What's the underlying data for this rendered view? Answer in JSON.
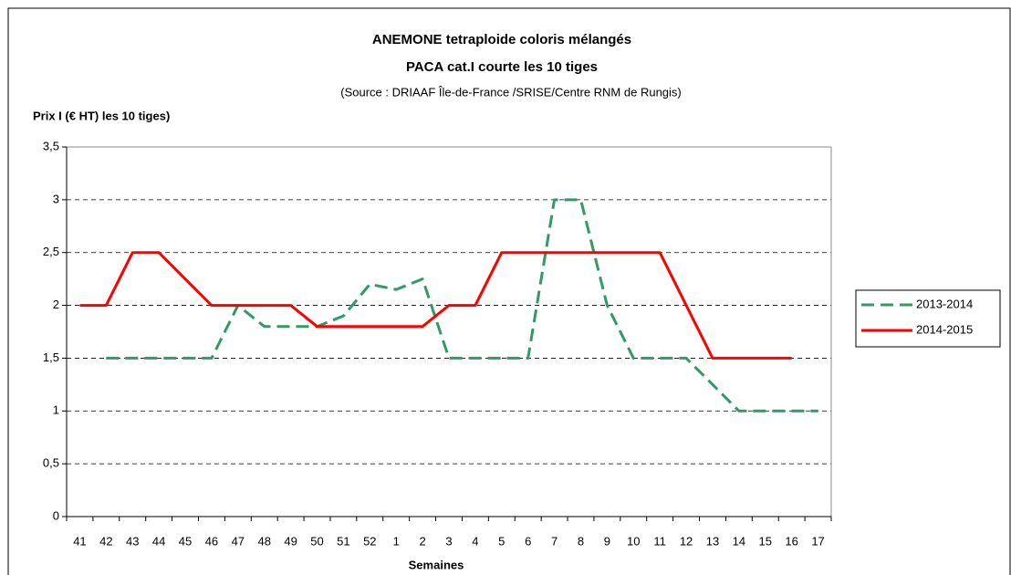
{
  "chart_data": {
    "type": "line",
    "title": "ANEMONE tetraploide coloris mélangés",
    "subtitle": "PACA cat.I courte les 10 tiges",
    "source": "(Source : DRIAAF Île-de-France /SRISE/Centre RNM de Rungis)",
    "y_label": "Prix I (€ HT) les 10 tiges)",
    "x_label": "Semaines",
    "categories": [
      "41",
      "42",
      "43",
      "44",
      "45",
      "46",
      "47",
      "48",
      "49",
      "50",
      "51",
      "52",
      "1",
      "2",
      "3",
      "4",
      "5",
      "6",
      "7",
      "8",
      "9",
      "10",
      "11",
      "12",
      "13",
      "14",
      "15",
      "16",
      "17"
    ],
    "series": [
      {
        "name": "2013-2014",
        "color": "#339966",
        "dashed": true,
        "values": [
          null,
          1.5,
          1.5,
          1.5,
          1.5,
          1.5,
          2,
          1.8,
          1.8,
          1.8,
          1.9,
          2.2,
          2.15,
          2.25,
          1.5,
          1.5,
          1.5,
          1.5,
          3,
          3,
          2,
          1.5,
          1.5,
          1.5,
          1.25,
          1,
          1,
          1,
          1
        ]
      },
      {
        "name": "2014-2015",
        "color": "#ff0000",
        "dashed": false,
        "values": [
          2,
          2,
          2.5,
          2.5,
          2.25,
          2,
          2,
          2,
          2,
          1.8,
          1.8,
          1.8,
          1.8,
          1.8,
          2,
          2,
          2.5,
          2.5,
          2.5,
          2.5,
          2.5,
          2.5,
          2.5,
          2,
          1.5,
          1.5,
          1.5,
          1.5,
          null
        ]
      }
    ],
    "ylim": [
      0,
      3.5
    ],
    "yticks": [
      0,
      {
        "value": 0.5,
        "label": "0,5"
      },
      1,
      {
        "value": 1.5,
        "label": "1,5"
      },
      2,
      {
        "value": 2.5,
        "label": "2,5"
      },
      3,
      {
        "value": 3.5,
        "label": "3,5"
      }
    ],
    "grid": true,
    "legend": "right"
  }
}
